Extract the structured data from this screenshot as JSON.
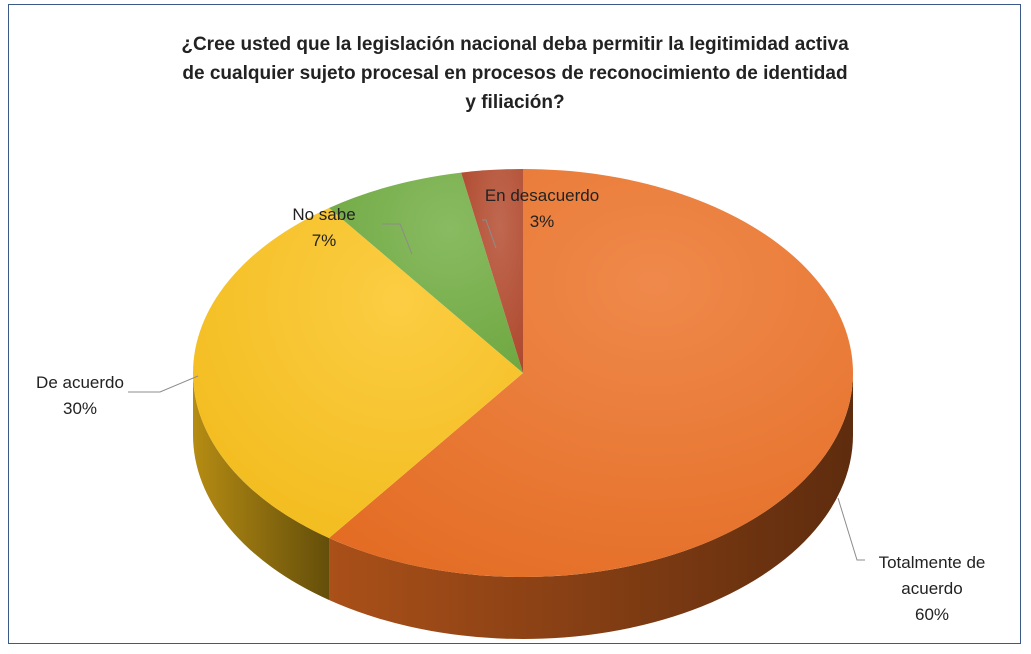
{
  "chart_data": {
    "type": "pie",
    "title_lines": [
      "¿Cree usted que la legislación  nacional  deba permitir la legitimidad activa",
      "de cualquier  sujeto procesal en procesos de reconocimiento de identidad",
      "y filiación?"
    ],
    "slices": [
      {
        "label": "Totalmente de acuerdo",
        "label_lines": [
          "Totalmente de",
          "acuerdo"
        ],
        "value": 60,
        "value_label": "60%",
        "color": "#ec6f23"
      },
      {
        "label": "De acuerdo",
        "label_lines": [
          "De acuerdo"
        ],
        "value": 30,
        "value_label": "30%",
        "color": "#fbc21a"
      },
      {
        "label": "No sabe",
        "label_lines": [
          "No sabe"
        ],
        "value": 7,
        "value_label": "7%",
        "color": "#6fac3f"
      },
      {
        "label": "En desacuerdo",
        "label_lines": [
          "En desacuerdo"
        ],
        "value": 3,
        "value_label": "3%",
        "color": "#b2472a"
      }
    ],
    "style": "3d-pie",
    "legend": "none"
  }
}
